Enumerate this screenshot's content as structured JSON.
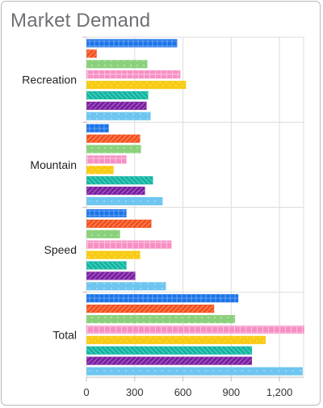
{
  "chart_data": {
    "type": "bar",
    "orientation": "horizontal",
    "title": "Market Demand",
    "xlabel": "",
    "ylabel": "",
    "xlim": [
      0,
      1350
    ],
    "x_ticks": [
      0,
      300,
      600,
      900,
      1200
    ],
    "x_tick_labels": [
      "0",
      "300",
      "600",
      "900",
      "1,200"
    ],
    "grid": true,
    "legend": "none",
    "categories": [
      "Recreation",
      "Mountain",
      "Speed",
      "Total"
    ],
    "series": [
      {
        "color": "#1a73e8",
        "values": [
          560,
          135,
          245,
          940
        ]
      },
      {
        "color": "#f4511e",
        "values": [
          60,
          330,
          400,
          790
        ]
      },
      {
        "color": "#8bd17c",
        "values": [
          375,
          335,
          205,
          920
        ]
      },
      {
        "color": "#f78fc4",
        "values": [
          580,
          245,
          525,
          1350
        ]
      },
      {
        "color": "#f9cb14",
        "values": [
          615,
          165,
          330,
          1110
        ]
      },
      {
        "color": "#12b5a2",
        "values": [
          380,
          410,
          245,
          1025
        ]
      },
      {
        "color": "#7b1fa2",
        "values": [
          370,
          360,
          300,
          1025
        ]
      },
      {
        "color": "#6ec6f0",
        "values": [
          395,
          470,
          490,
          1340
        ]
      }
    ]
  }
}
